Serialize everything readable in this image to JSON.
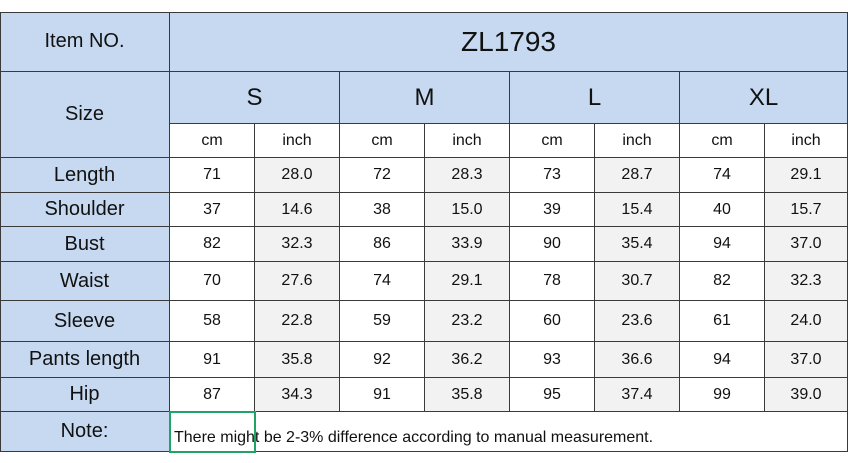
{
  "header": {
    "item_label": "Item NO.",
    "item_value": "ZL1793",
    "size_label": "Size",
    "sizes": [
      "S",
      "M",
      "L",
      "XL"
    ],
    "units": [
      "cm",
      "inch"
    ]
  },
  "table": {
    "rows": [
      {
        "label": "Length",
        "values": [
          "71",
          "28.0",
          "72",
          "28.3",
          "73",
          "28.7",
          "74",
          "29.1"
        ]
      },
      {
        "label": "Shoulder",
        "values": [
          "37",
          "14.6",
          "38",
          "15.0",
          "39",
          "15.4",
          "40",
          "15.7"
        ]
      },
      {
        "label": "Bust",
        "values": [
          "82",
          "32.3",
          "86",
          "33.9",
          "90",
          "35.4",
          "94",
          "37.0"
        ]
      },
      {
        "label": "Waist",
        "values": [
          "70",
          "27.6",
          "74",
          "29.1",
          "78",
          "30.7",
          "82",
          "32.3"
        ]
      },
      {
        "label": "Sleeve",
        "values": [
          "58",
          "22.8",
          "59",
          "23.2",
          "60",
          "23.6",
          "61",
          "24.0"
        ]
      },
      {
        "label": "Pants length",
        "values": [
          "91",
          "35.8",
          "92",
          "36.2",
          "93",
          "36.6",
          "94",
          "37.0"
        ]
      },
      {
        "label": "Hip",
        "values": [
          "87",
          "34.3",
          "91",
          "35.8",
          "95",
          "37.4",
          "99",
          "39.0"
        ]
      }
    ]
  },
  "note": {
    "label": "Note:",
    "text": "There might be 2-3% difference according to manual measurement."
  }
}
